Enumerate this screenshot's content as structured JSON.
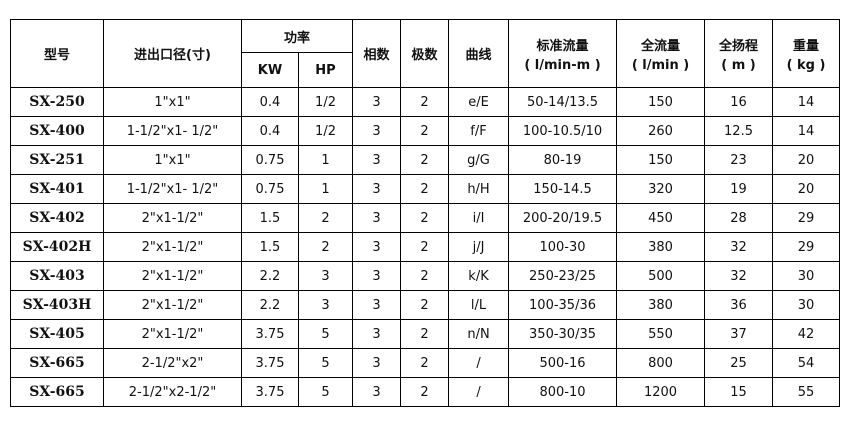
{
  "headers": {
    "model": "型号",
    "port": "进出口径(寸)",
    "power": "功率",
    "kw": "KW",
    "hp": "HP",
    "phase": "相数",
    "poles": "极数",
    "curve": "曲线",
    "std_flow": "标准流量",
    "std_flow_unit": "( l/min-m )",
    "max_flow": "全流量",
    "max_flow_unit": "( l/min )",
    "max_head": "全扬程",
    "max_head_unit": "( m )",
    "weight": "重量",
    "weight_unit": "( kg )"
  },
  "rows": [
    [
      "SX-250",
      "1\"x1\"",
      "0.4",
      "1/2",
      "3",
      "2",
      "e/E",
      "50-14/13.5",
      "150",
      "16",
      "14"
    ],
    [
      "SX-400",
      "1-1/2\"x1- 1/2\"",
      "0.4",
      "1/2",
      "3",
      "2",
      "f/F",
      "100-10.5/10",
      "260",
      "12.5",
      "14"
    ],
    [
      "SX-251",
      "1\"x1\"",
      "0.75",
      "1",
      "3",
      "2",
      "g/G",
      "80-19",
      "150",
      "23",
      "20"
    ],
    [
      "SX-401",
      "1-1/2\"x1- 1/2\"",
      "0.75",
      "1",
      "3",
      "2",
      "h/H",
      "150-14.5",
      "320",
      "19",
      "20"
    ],
    [
      "SX-402",
      "2\"x1-1/2\"",
      "1.5",
      "2",
      "3",
      "2",
      "i/I",
      "200-20/19.5",
      "450",
      "28",
      "29"
    ],
    [
      "SX-402H",
      "2\"x1-1/2\"",
      "1.5",
      "2",
      "3",
      "2",
      "j/J",
      "100-30",
      "380",
      "32",
      "29"
    ],
    [
      "SX-403",
      "2\"x1-1/2\"",
      "2.2",
      "3",
      "3",
      "2",
      "k/K",
      "250-23/25",
      "500",
      "32",
      "30"
    ],
    [
      "SX-403H",
      "2\"x1-1/2\"",
      "2.2",
      "3",
      "3",
      "2",
      "l/L",
      "100-35/36",
      "380",
      "36",
      "30"
    ],
    [
      "SX-405",
      "2\"x1-1/2\"",
      "3.75",
      "5",
      "3",
      "2",
      "n/N",
      "350-30/35",
      "550",
      "37",
      "42"
    ],
    [
      "SX-665",
      "2-1/2\"x2\"",
      "3.75",
      "5",
      "3",
      "2",
      "/",
      "500-16",
      "800",
      "25",
      "54"
    ],
    [
      "SX-665",
      "2-1/2\"x2-1/2\"",
      "3.75",
      "5",
      "3",
      "2",
      "/",
      "800-10",
      "1200",
      "15",
      "55"
    ]
  ]
}
